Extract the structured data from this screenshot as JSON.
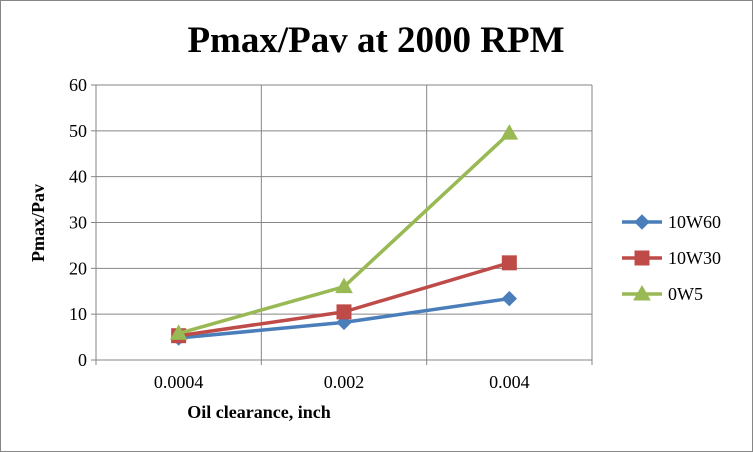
{
  "chart_data": {
    "type": "line",
    "title": "Pmax/Pav at 2000 RPM",
    "xlabel": "Oil clearance, inch",
    "ylabel": "Pmax/Pav",
    "categories": [
      "0.0004",
      "0.002",
      "0.004"
    ],
    "ylim": [
      0,
      60
    ],
    "yticks": [
      "0",
      "10",
      "20",
      "30",
      "40",
      "50",
      "60"
    ],
    "grid": true,
    "legend": "right",
    "series": [
      {
        "name": "10W60",
        "values": [
          4.8,
          8.2,
          13.4
        ],
        "color": "#4A7EBB",
        "marker": "diamond"
      },
      {
        "name": "10W30",
        "values": [
          5.3,
          10.5,
          21.2
        ],
        "color": "#BE4B48",
        "marker": "square"
      },
      {
        "name": "0W5",
        "values": [
          5.8,
          16.0,
          49.5
        ],
        "color": "#98B954",
        "marker": "triangle"
      }
    ]
  }
}
